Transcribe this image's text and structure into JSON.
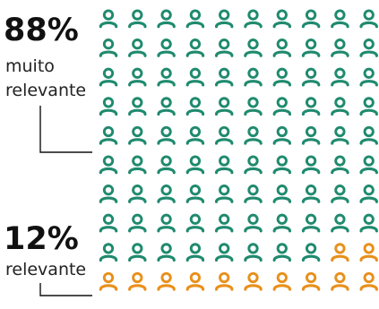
{
  "chart_data": {
    "type": "pictograph",
    "grid": {
      "rows": 10,
      "columns": 10
    },
    "series": [
      {
        "label": "88%",
        "caption_lines": [
          "muito",
          "relevante"
        ],
        "value": 88,
        "color": "#1f8a6e"
      },
      {
        "label": "12%",
        "caption_lines": [
          "relevante"
        ],
        "value": 12,
        "color": "#e8901b"
      }
    ],
    "icon": "person-icon"
  }
}
